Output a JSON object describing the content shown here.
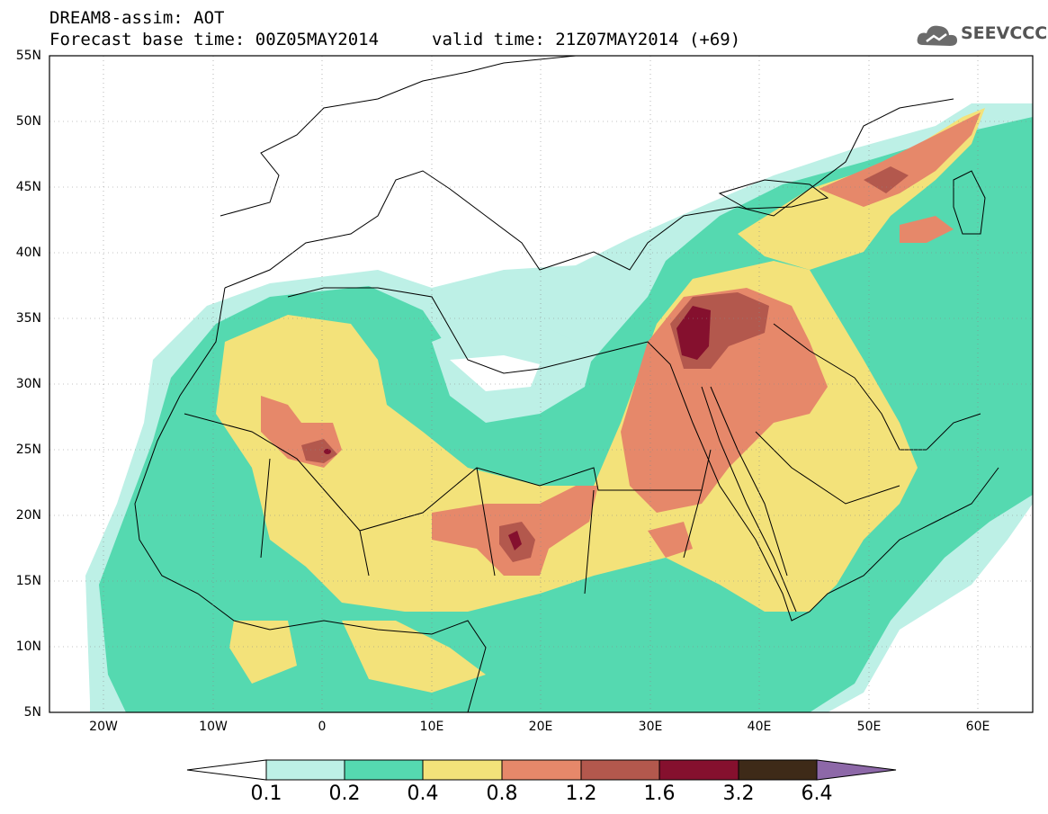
{
  "title_line1": "DREAM8-assim: AOT",
  "title_line2": "Forecast base time: 00Z05MAY2014",
  "title_valid": "valid time: 21Z07MAY2014 (+69)",
  "logo_text": "SEEVCCC",
  "map": {
    "variable": "AOT",
    "lon_range": [
      -25,
      65
    ],
    "lat_range": [
      5,
      55
    ],
    "y_ticks": [
      "55N",
      "50N",
      "45N",
      "40N",
      "35N",
      "30N",
      "25N",
      "20N",
      "15N",
      "10N",
      "5N"
    ],
    "x_ticks": [
      "20W",
      "10W",
      "0",
      "10E",
      "20E",
      "30E",
      "40E",
      "50E",
      "60E"
    ]
  },
  "colorbar": {
    "labels": [
      "0.1",
      "0.2",
      "0.4",
      "0.8",
      "1.2",
      "1.6",
      "3.2",
      "6.4"
    ],
    "colors": [
      "#ffffff",
      "#bdf0e6",
      "#55d9b0",
      "#f3e27a",
      "#e6886a",
      "#b3584d",
      "#85102e",
      "#3e2a18",
      "#8d68a8"
    ]
  }
}
